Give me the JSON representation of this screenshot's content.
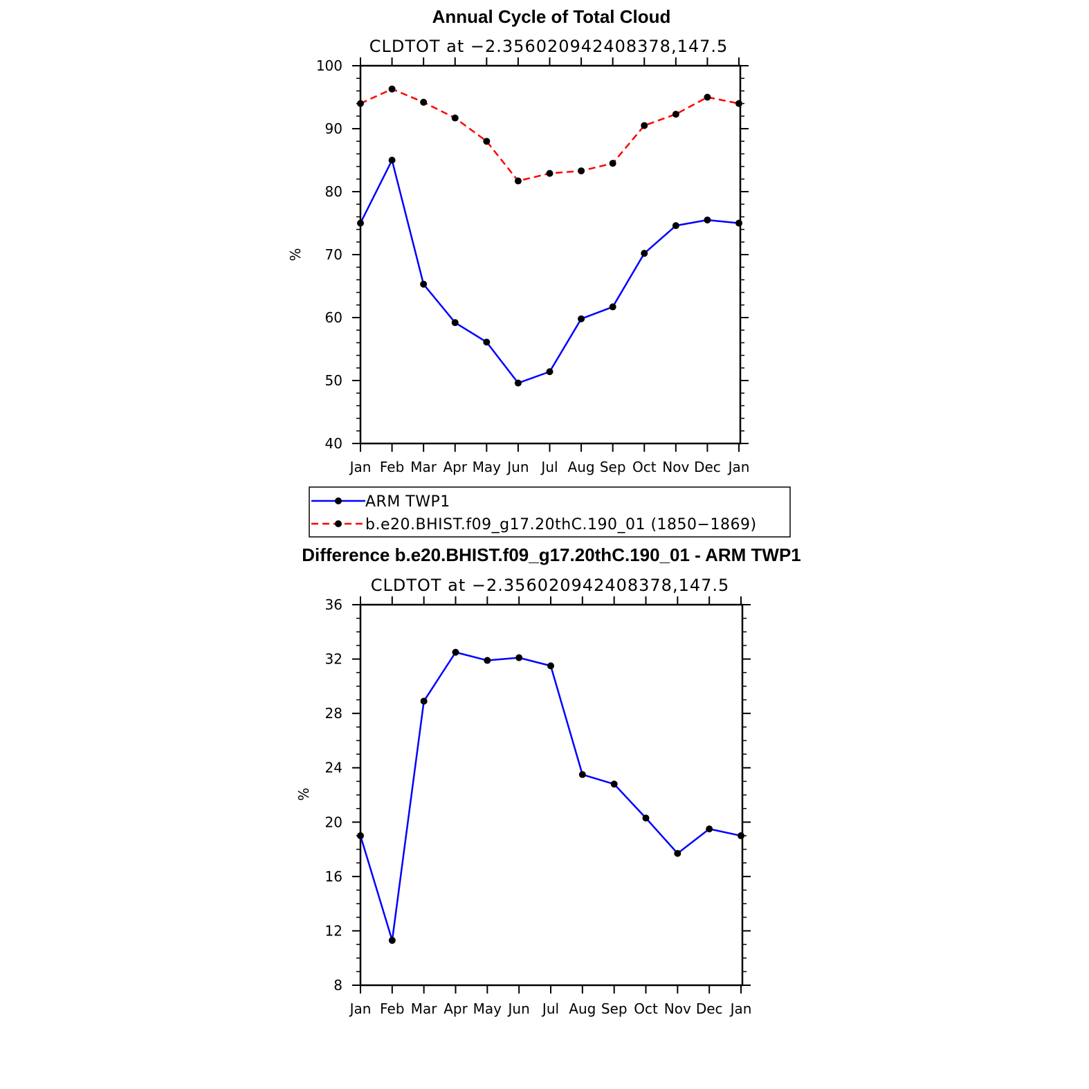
{
  "chart_data": [
    {
      "type": "line",
      "title": "Annual Cycle of Total Cloud",
      "subtitle": "CLDTOT at −2.356020942408378,147.5",
      "xlabel": "",
      "ylabel": "%",
      "categories": [
        "Jan",
        "Feb",
        "Mar",
        "Apr",
        "May",
        "Jun",
        "Jul",
        "Aug",
        "Sep",
        "Oct",
        "Nov",
        "Dec",
        "Jan"
      ],
      "ylim": [
        40,
        100
      ],
      "yticks": [
        40,
        50,
        60,
        70,
        80,
        90,
        100
      ],
      "series": [
        {
          "name": "ARM TWP1",
          "color": "#0000ff",
          "dash": "solid",
          "values": [
            75.0,
            85.0,
            65.3,
            59.2,
            56.1,
            49.6,
            51.4,
            59.8,
            61.7,
            70.2,
            74.6,
            75.5,
            75.0
          ]
        },
        {
          "name": "b.e20.BHIST.f09_g17.20thC.190_01 (1850−1869)",
          "color": "#ff0000",
          "dash": "dashed",
          "values": [
            94.0,
            96.3,
            94.2,
            91.7,
            88.0,
            81.7,
            82.9,
            83.3,
            84.5,
            90.5,
            92.3,
            95.0,
            94.0
          ]
        }
      ],
      "legend": "below"
    },
    {
      "type": "line",
      "title": "Difference b.e20.BHIST.f09_g17.20thC.190_01 - ARM TWP1",
      "subtitle": "CLDTOT at −2.356020942408378,147.5",
      "xlabel": "",
      "ylabel": "%",
      "categories": [
        "Jan",
        "Feb",
        "Mar",
        "Apr",
        "May",
        "Jun",
        "Jul",
        "Aug",
        "Sep",
        "Oct",
        "Nov",
        "Dec",
        "Jan"
      ],
      "ylim": [
        8,
        36
      ],
      "yticks": [
        8,
        12,
        16,
        20,
        24,
        28,
        32,
        36
      ],
      "series": [
        {
          "name": "Difference",
          "color": "#0000ff",
          "dash": "solid",
          "values": [
            19.0,
            11.3,
            28.9,
            32.5,
            31.9,
            32.1,
            31.5,
            23.5,
            22.8,
            20.3,
            17.7,
            19.5,
            19.0
          ]
        }
      ]
    }
  ]
}
